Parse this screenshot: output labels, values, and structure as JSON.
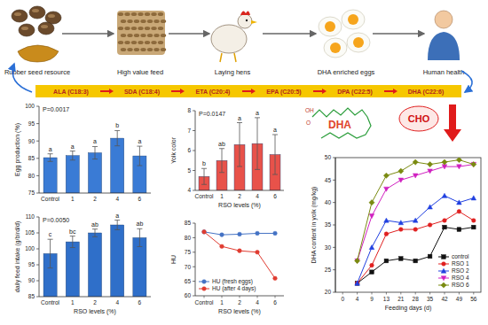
{
  "diagram": {
    "steps": [
      "Rubber seed resource",
      "High value feed",
      "Laying hens",
      "DHA enriched eggs",
      "Human health"
    ],
    "pathway": [
      "ALA (C18:3)",
      "SDA (C18:4)",
      "ETA (C20:4)",
      "EPA (C20:5)",
      "DPA (C22:5)",
      "DHA (C22:6)"
    ],
    "molecule": {
      "label": "DHA",
      "groups": [
        "OH",
        "O"
      ]
    },
    "cholesterol": "CHO"
  },
  "chart_data": [
    {
      "type": "bar",
      "title": "P=0.0017",
      "y_label": "Egg production (%)",
      "categories": [
        "Control",
        "1",
        "2",
        "4",
        "6"
      ],
      "values": [
        85.2,
        85.8,
        86.6,
        90.8,
        85.7
      ],
      "errors": [
        1.1,
        1.3,
        1.8,
        2.2,
        2.8
      ],
      "letters": [
        "a",
        "a",
        "a",
        "b",
        "a"
      ],
      "color": "#3a7bd5",
      "ylim": [
        75,
        100
      ],
      "yticks": [
        75,
        80,
        85,
        90,
        95,
        100
      ]
    },
    {
      "type": "bar",
      "title": "P=0.0147",
      "y_label": "Yolk color",
      "x_label": "RSO levels (%)",
      "categories": [
        "Control",
        "1",
        "2",
        "4",
        "6"
      ],
      "values": [
        4.7,
        5.5,
        6.3,
        6.35,
        5.8
      ],
      "errors": [
        0.4,
        0.6,
        1.1,
        1.3,
        1.0
      ],
      "letters": [
        "b",
        "ab",
        "a",
        "a",
        "a"
      ],
      "color": "#e8524a",
      "ylim": [
        4,
        8
      ],
      "yticks": [
        4,
        5,
        6,
        7,
        8
      ]
    },
    {
      "type": "bar",
      "title": "P=0.0050",
      "y_label": "daily feed intake (g/bird/d)",
      "x_label": "RSO levels (%)",
      "categories": [
        "Control",
        "1",
        "2",
        "4",
        "6"
      ],
      "values": [
        98.5,
        102.2,
        105,
        107.5,
        103.5
      ],
      "errors": [
        4.5,
        1.8,
        1.2,
        1.5,
        2.8
      ],
      "letters": [
        "c",
        "bc",
        "ab",
        "a",
        "ab"
      ],
      "color": "#2f6fc9",
      "ylim": [
        85,
        110
      ],
      "yticks": [
        85,
        90,
        95,
        100,
        105,
        110
      ]
    },
    {
      "type": "line",
      "y_label": "HU",
      "x_label": "RSO levels (%)",
      "categories": [
        "Control",
        "1",
        "2",
        "4",
        "6"
      ],
      "series": [
        {
          "name": "HU (fresh eggs)",
          "color": "#4472c4",
          "marker": "circle",
          "values": [
            82,
            81,
            81.2,
            81.5,
            81.5
          ]
        },
        {
          "name": "HU (after 4 days)",
          "color": "#e03c31",
          "marker": "circle",
          "values": [
            82,
            77,
            75.5,
            75,
            66
          ]
        }
      ],
      "ylim": [
        60,
        85
      ],
      "yticks": [
        60,
        65,
        70,
        75,
        80,
        85
      ],
      "legend": "lower left"
    },
    {
      "type": "line",
      "y_label": "DHA content in yolk (mg/kg)",
      "x_label": "Feeding days (d)",
      "categories": [
        0,
        4,
        9,
        13,
        21,
        28,
        35,
        42,
        49,
        56
      ],
      "series": [
        {
          "name": "control",
          "color": "#111111",
          "marker": "square",
          "values": [
            null,
            22,
            24.5,
            27,
            27.5,
            27,
            28,
            34.5,
            34,
            34.5
          ]
        },
        {
          "name": "RSO 1",
          "color": "#e02020",
          "marker": "circle",
          "values": [
            null,
            22,
            26,
            33,
            34,
            34,
            35,
            36,
            38,
            36
          ]
        },
        {
          "name": "RSO 2",
          "color": "#2040e0",
          "marker": "triangle",
          "values": [
            null,
            22,
            30,
            36,
            35.5,
            36,
            39,
            41.5,
            40,
            41
          ]
        },
        {
          "name": "RSO 4",
          "color": "#d020c0",
          "marker": "triangle-down",
          "values": [
            null,
            27,
            37,
            43,
            45,
            46,
            47,
            48,
            48,
            48.5
          ]
        },
        {
          "name": "RSO 6",
          "color": "#7a8a10",
          "marker": "diamond",
          "values": [
            null,
            27,
            40,
            46,
            47,
            49,
            48.5,
            49,
            49.5,
            48.5
          ]
        }
      ],
      "ylim": [
        20,
        50
      ],
      "yticks": [
        20,
        25,
        30,
        35,
        40,
        45,
        50
      ],
      "legend": "lower right"
    }
  ]
}
